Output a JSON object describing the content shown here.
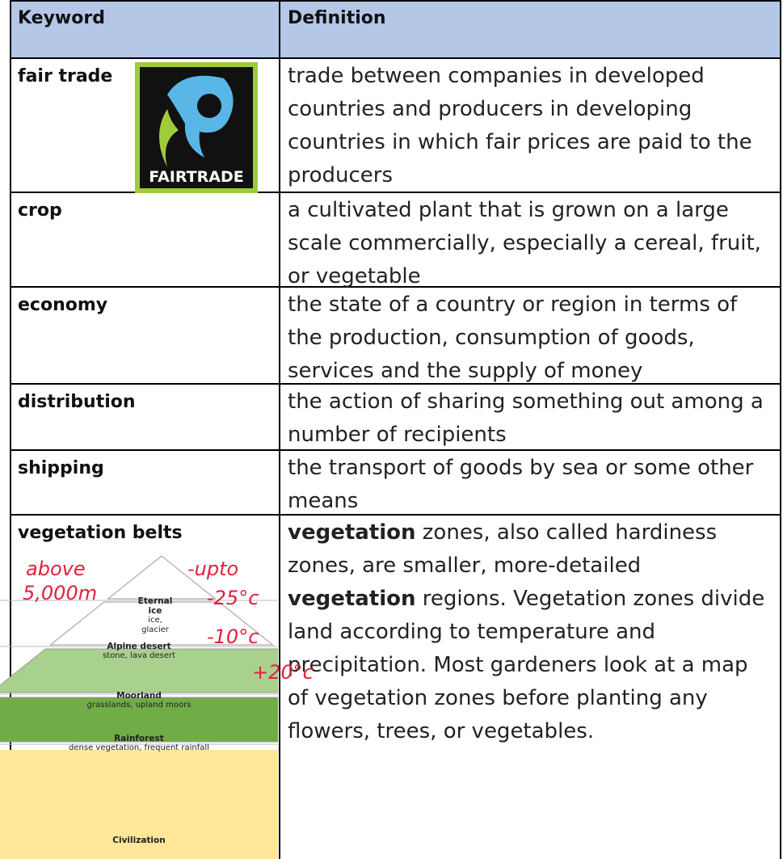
{
  "header": {
    "keyword": "Keyword",
    "definition": "Definition"
  },
  "rows": [
    {
      "keyword": "fair trade",
      "logo_text": "FAIRTRADE",
      "definition": [
        {
          "text": "trade between companies in developed countries and producers in developing countries in which fair prices are paid to the producers",
          "bold": false
        }
      ]
    },
    {
      "keyword": "crop",
      "definition": [
        {
          "text": "a cultivated plant that is grown on a large scale commercially, especially a cereal, fruit, or vegetable",
          "bold": false
        }
      ]
    },
    {
      "keyword": "economy",
      "definition": [
        {
          "text": "the state of a country or region in terms of the production, consumption of goods, services and the supply of money",
          "bold": false
        }
      ]
    },
    {
      "keyword": "distribution",
      "definition": [
        {
          "text": "the action of sharing something out among a number of recipients",
          "bold": false
        }
      ]
    },
    {
      "keyword": "shipping",
      "definition": [
        {
          "text": "the transport of goods by sea or some other means",
          "bold": false
        }
      ]
    },
    {
      "keyword": "vegetation belts",
      "definition": [
        {
          "text": "vegetation",
          "bold": true
        },
        {
          "text": " zones, also called hardiness zones, are smaller, more-detailed ",
          "bold": false
        },
        {
          "text": "vegetation",
          "bold": true
        },
        {
          "text": " regions. Vegetation zones divide land according to temperature and precipitation. Most gardeners look at a map of vegetation zones before planting any flowers, trees, or vegetables.",
          "bold": false
        }
      ]
    }
  ],
  "pyramid": {
    "levels": [
      {
        "name": "Eternal ice",
        "detail": "ice, glacier"
      },
      {
        "name": "Alpine desert",
        "detail": "stone, lava desert"
      },
      {
        "name": "Moorland",
        "detail": "grasslands, upland moors"
      },
      {
        "name": "Rainforest",
        "detail": "dense vegetation, frequent rainfall"
      },
      {
        "name": "Civilization"
      }
    ],
    "annotations": [
      "above",
      "5,000m",
      "-upto",
      "-25°c",
      "-10°c",
      "+20°c"
    ]
  }
}
